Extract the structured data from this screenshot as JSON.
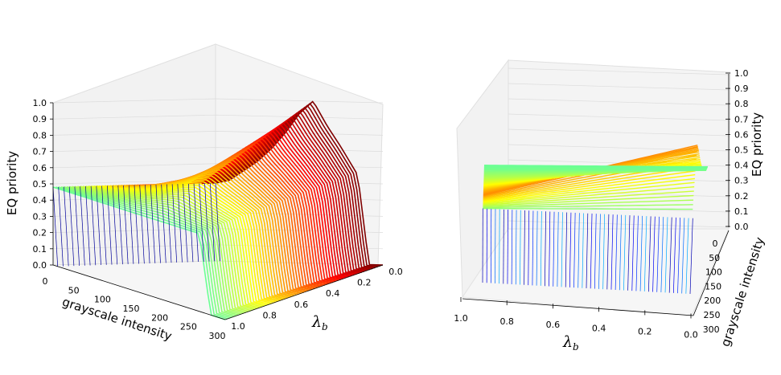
{
  "chart_data": [
    {
      "type": "surface3d",
      "view": "left",
      "title": "",
      "zlabel": "EQ priority",
      "xlabel": "grayscale intensity",
      "ylabel_symbol": "λ",
      "ylabel_subscript": "b",
      "xlim": [
        0,
        300
      ],
      "ylim": [
        0.0,
        1.0
      ],
      "zlim": [
        0.0,
        1.0
      ],
      "x_ticks": [
        "0",
        "50",
        "100",
        "150",
        "200",
        "250",
        "300"
      ],
      "y_ticks": [
        "0.0",
        "0.2",
        "0.4",
        "0.6",
        "0.8",
        "1.0"
      ],
      "z_ticks": [
        "0.0",
        "0.1",
        "0.2",
        "0.3",
        "0.4",
        "0.5",
        "0.6",
        "0.7",
        "0.8",
        "0.9",
        "1.0"
      ],
      "colormap": "jet",
      "grid": true,
      "surface_profile": {
        "grayscale": [
          0,
          25,
          50,
          75,
          100,
          125,
          150,
          175,
          200,
          225,
          255,
          275,
          300
        ],
        "priority_at_lambda_1": [
          0.48,
          0.48,
          0.48,
          0.48,
          0.48,
          0.48,
          0.48,
          0.48,
          0.48,
          0.48,
          0.48,
          0.0,
          0.0
        ],
        "priority_at_lambda_0": [
          0.48,
          0.5,
          0.56,
          0.62,
          0.7,
          0.8,
          0.92,
          1.0,
          0.85,
          0.72,
          0.55,
          0.0,
          0.0
        ]
      }
    },
    {
      "type": "surface3d",
      "view": "right",
      "title": "",
      "zlabel": "EQ priority",
      "xlabel_symbol": "λ",
      "xlabel_subscript": "b",
      "ylabel": "grayscale intensity",
      "xlim": [
        1.0,
        0.0
      ],
      "ylim": [
        0,
        300
      ],
      "zlim": [
        0.0,
        1.0
      ],
      "x_ticks": [
        "1.0",
        "0.8",
        "0.6",
        "0.4",
        "0.2",
        "0.0"
      ],
      "y_ticks": [
        "0",
        "50",
        "100",
        "150",
        "200",
        "250",
        "300"
      ],
      "z_ticks": [
        "0.0",
        "0.1",
        "0.2",
        "0.3",
        "0.4",
        "0.5",
        "0.6",
        "0.7",
        "0.8",
        "0.9",
        "1.0"
      ],
      "colormap": "jet",
      "grid": true
    }
  ]
}
